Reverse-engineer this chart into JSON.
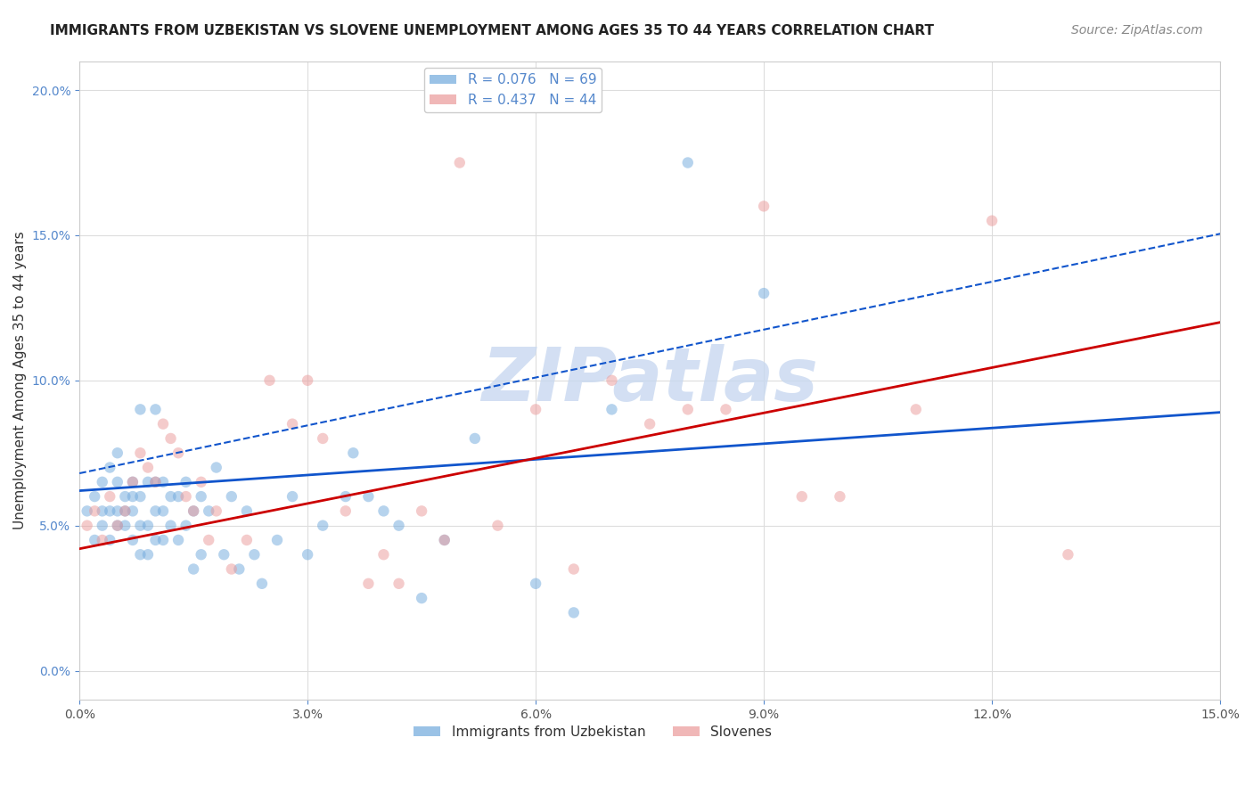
{
  "title": "IMMIGRANTS FROM UZBEKISTAN VS SLOVENE UNEMPLOYMENT AMONG AGES 35 TO 44 YEARS CORRELATION CHART",
  "source": "Source: ZipAtlas.com",
  "xlabel_bottom": "",
  "ylabel": "Unemployment Among Ages 35 to 44 years",
  "xlim": [
    0.0,
    0.15
  ],
  "ylim": [
    -0.01,
    0.21
  ],
  "xticks": [
    0.0,
    0.03,
    0.06,
    0.09,
    0.12,
    0.15
  ],
  "yticks": [
    0.0,
    0.05,
    0.1,
    0.15,
    0.2
  ],
  "legend_R1": "R = 0.076",
  "legend_N1": "N = 69",
  "legend_R2": "R = 0.437",
  "legend_N2": "N = 44",
  "legend_label1": "Immigrants from Uzbekistan",
  "legend_label2": "Slovenes",
  "blue_color": "#6fa8dc",
  "pink_color": "#ea9999",
  "line_blue_color": "#1155cc",
  "line_pink_color": "#cc0000",
  "watermark": "ZIPatlas",
  "watermark_color": "#c8d8f0",
  "background_color": "#ffffff",
  "grid_color": "#dddddd",
  "blue_scatter_x": [
    0.001,
    0.002,
    0.002,
    0.003,
    0.003,
    0.003,
    0.004,
    0.004,
    0.004,
    0.005,
    0.005,
    0.005,
    0.005,
    0.006,
    0.006,
    0.006,
    0.007,
    0.007,
    0.007,
    0.007,
    0.008,
    0.008,
    0.008,
    0.008,
    0.009,
    0.009,
    0.009,
    0.01,
    0.01,
    0.01,
    0.01,
    0.011,
    0.011,
    0.011,
    0.012,
    0.012,
    0.013,
    0.013,
    0.014,
    0.014,
    0.015,
    0.015,
    0.016,
    0.016,
    0.017,
    0.018,
    0.019,
    0.02,
    0.021,
    0.022,
    0.023,
    0.024,
    0.026,
    0.028,
    0.03,
    0.032,
    0.035,
    0.036,
    0.038,
    0.04,
    0.042,
    0.045,
    0.048,
    0.052,
    0.06,
    0.065,
    0.07,
    0.08,
    0.09
  ],
  "blue_scatter_y": [
    0.055,
    0.045,
    0.06,
    0.05,
    0.055,
    0.065,
    0.045,
    0.055,
    0.07,
    0.05,
    0.055,
    0.065,
    0.075,
    0.05,
    0.055,
    0.06,
    0.045,
    0.055,
    0.06,
    0.065,
    0.04,
    0.05,
    0.06,
    0.09,
    0.04,
    0.05,
    0.065,
    0.045,
    0.055,
    0.065,
    0.09,
    0.045,
    0.055,
    0.065,
    0.05,
    0.06,
    0.045,
    0.06,
    0.05,
    0.065,
    0.035,
    0.055,
    0.04,
    0.06,
    0.055,
    0.07,
    0.04,
    0.06,
    0.035,
    0.055,
    0.04,
    0.03,
    0.045,
    0.06,
    0.04,
    0.05,
    0.06,
    0.075,
    0.06,
    0.055,
    0.05,
    0.025,
    0.045,
    0.08,
    0.03,
    0.02,
    0.09,
    0.175,
    0.13
  ],
  "pink_scatter_x": [
    0.001,
    0.002,
    0.003,
    0.004,
    0.005,
    0.006,
    0.007,
    0.008,
    0.009,
    0.01,
    0.011,
    0.012,
    0.013,
    0.014,
    0.015,
    0.016,
    0.017,
    0.018,
    0.02,
    0.022,
    0.025,
    0.028,
    0.03,
    0.032,
    0.035,
    0.038,
    0.04,
    0.042,
    0.045,
    0.048,
    0.05,
    0.055,
    0.06,
    0.065,
    0.07,
    0.075,
    0.08,
    0.085,
    0.09,
    0.095,
    0.1,
    0.11,
    0.12,
    0.13
  ],
  "pink_scatter_y": [
    0.05,
    0.055,
    0.045,
    0.06,
    0.05,
    0.055,
    0.065,
    0.075,
    0.07,
    0.065,
    0.085,
    0.08,
    0.075,
    0.06,
    0.055,
    0.065,
    0.045,
    0.055,
    0.035,
    0.045,
    0.1,
    0.085,
    0.1,
    0.08,
    0.055,
    0.03,
    0.04,
    0.03,
    0.055,
    0.045,
    0.175,
    0.05,
    0.09,
    0.035,
    0.1,
    0.085,
    0.09,
    0.09,
    0.16,
    0.06,
    0.06,
    0.09,
    0.155,
    0.04
  ],
  "title_fontsize": 11,
  "axis_label_fontsize": 11,
  "tick_fontsize": 10,
  "legend_fontsize": 11,
  "source_fontsize": 10,
  "marker_size": 80,
  "marker_alpha": 0.5,
  "blue_line_intercept": 0.062,
  "blue_line_slope": 0.18,
  "pink_line_intercept": 0.042,
  "pink_line_slope": 0.52,
  "dashed_line_intercept": 0.068,
  "dashed_line_slope": 0.55
}
